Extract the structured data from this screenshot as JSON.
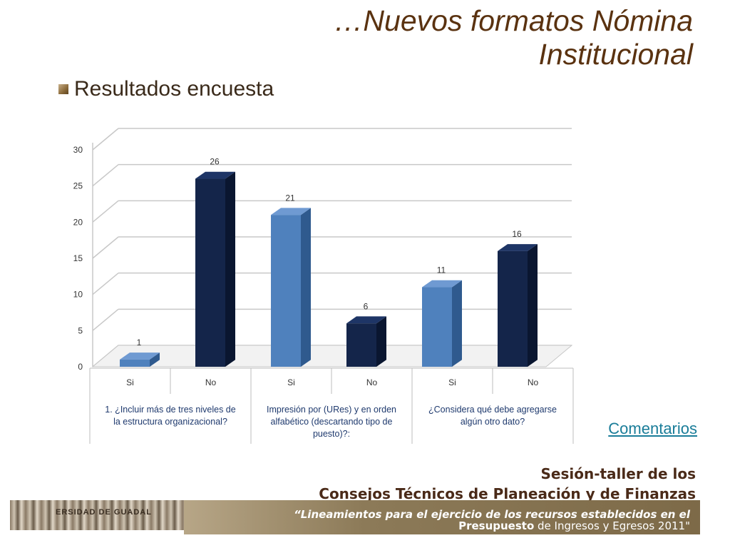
{
  "header": {
    "title_line1": "…Nuevos formatos Nómina",
    "title_line2": "Institucional",
    "subtitle": "Resultados encuesta"
  },
  "link": {
    "label": "Comentarios"
  },
  "footer": {
    "line1": "Sesión-taller de los",
    "line2": "Consejos Técnicos de Planeación y de Finanzas",
    "bar_line1": "“Lineamientos para el ejercicio de los recursos establecidos en el",
    "bar_line2_bold": "Presupuesto",
    "bar_line2_rest": " de Ingresos y Egresos 2011\"",
    "logo_text": "ERSIDAD DE GUADAL"
  },
  "chart_data": {
    "type": "bar",
    "categories": [
      "Si",
      "No",
      "Si",
      "No",
      "Si",
      "No"
    ],
    "groups": [
      "1. ¿Incluir más de tres niveles de la estructura organizacional?",
      "Impresión por (URes) y en orden alfabético (descartando tipo de puesto)?:",
      "¿Considera qué debe agregarse algún otro dato?"
    ],
    "values": [
      1,
      26,
      21,
      6,
      11,
      16
    ],
    "data_labels": [
      "1",
      "26",
      "21",
      "6",
      "11",
      "16"
    ],
    "colors": [
      "#4f81bd",
      "#14254a",
      "#4f81bd",
      "#14254a",
      "#4f81bd",
      "#14254a"
    ],
    "yticks": [
      0,
      5,
      10,
      15,
      20,
      25,
      30
    ],
    "ylim": [
      0,
      30
    ],
    "grid": true,
    "three_d": true
  }
}
